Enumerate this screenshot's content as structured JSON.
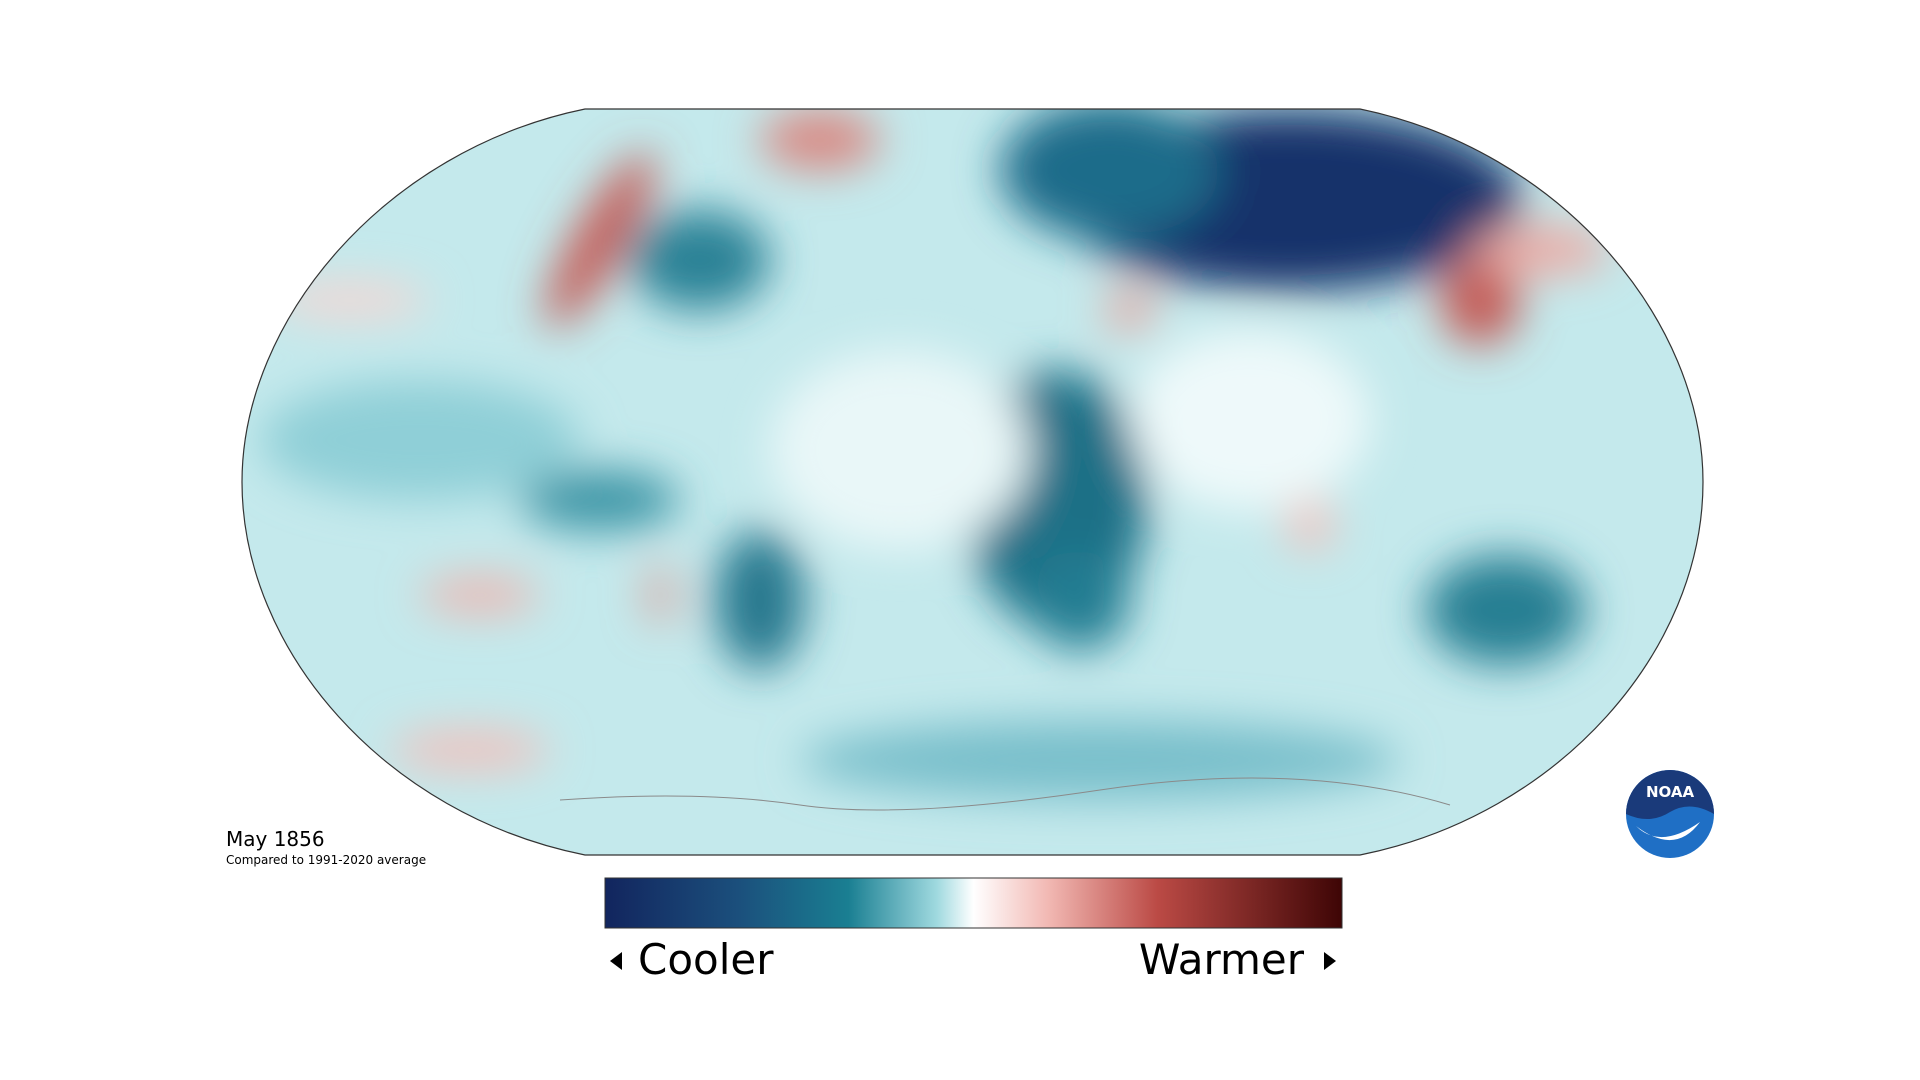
{
  "map": {
    "title": "May 1856",
    "subtitle": "Compared to 1991-2020 average"
  },
  "legend": {
    "low_label": "Cooler",
    "high_label": "Warmer"
  },
  "logo": {
    "text": "NOAA"
  }
}
